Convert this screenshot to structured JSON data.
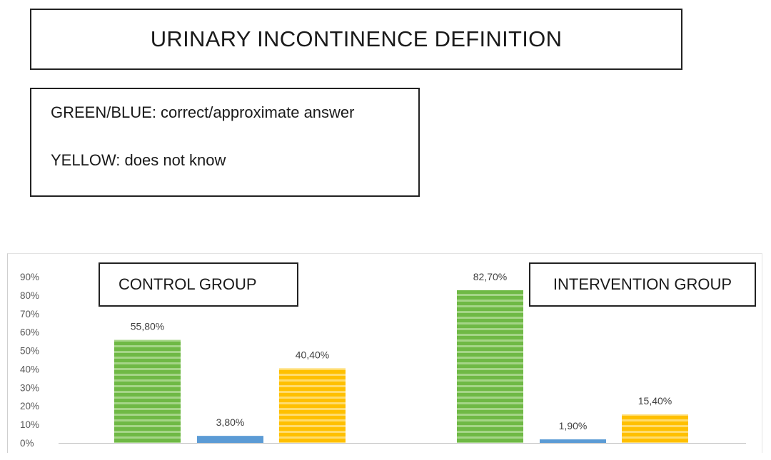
{
  "title": "URINARY INCONTINENCE DEFINITION",
  "legend": {
    "line1": "GREEN/BLUE: correct/approximate answer",
    "line2": "YELLOW: does not know"
  },
  "colors": {
    "green": "#6fb945",
    "green_light": "#a5d587",
    "blue": "#5b9bd5",
    "yellow": "#ffc000",
    "yellow_light": "#ffdc6e",
    "axis_text": "#595959",
    "axis_line": "#bfbfbf"
  },
  "chart_data": {
    "type": "bar",
    "ylim": [
      0,
      90
    ],
    "yticks": [
      "0%",
      "10%",
      "20%",
      "30%",
      "40%",
      "50%",
      "60%",
      "70%",
      "80%",
      "90%"
    ],
    "groups": [
      {
        "label": "CONTROL GROUP",
        "bars": [
          {
            "color": "green",
            "value": 55.8,
            "label": "55,80%"
          },
          {
            "color": "blue",
            "value": 3.8,
            "label": "3,80%"
          },
          {
            "color": "yellow",
            "value": 40.4,
            "label": "40,40%"
          }
        ]
      },
      {
        "label": "INTERVENTION GROUP",
        "bars": [
          {
            "color": "green",
            "value": 82.7,
            "label": "82,70%"
          },
          {
            "color": "blue",
            "value": 1.9,
            "label": "1,90%"
          },
          {
            "color": "yellow",
            "value": 15.4,
            "label": "15,40%"
          }
        ]
      }
    ]
  }
}
